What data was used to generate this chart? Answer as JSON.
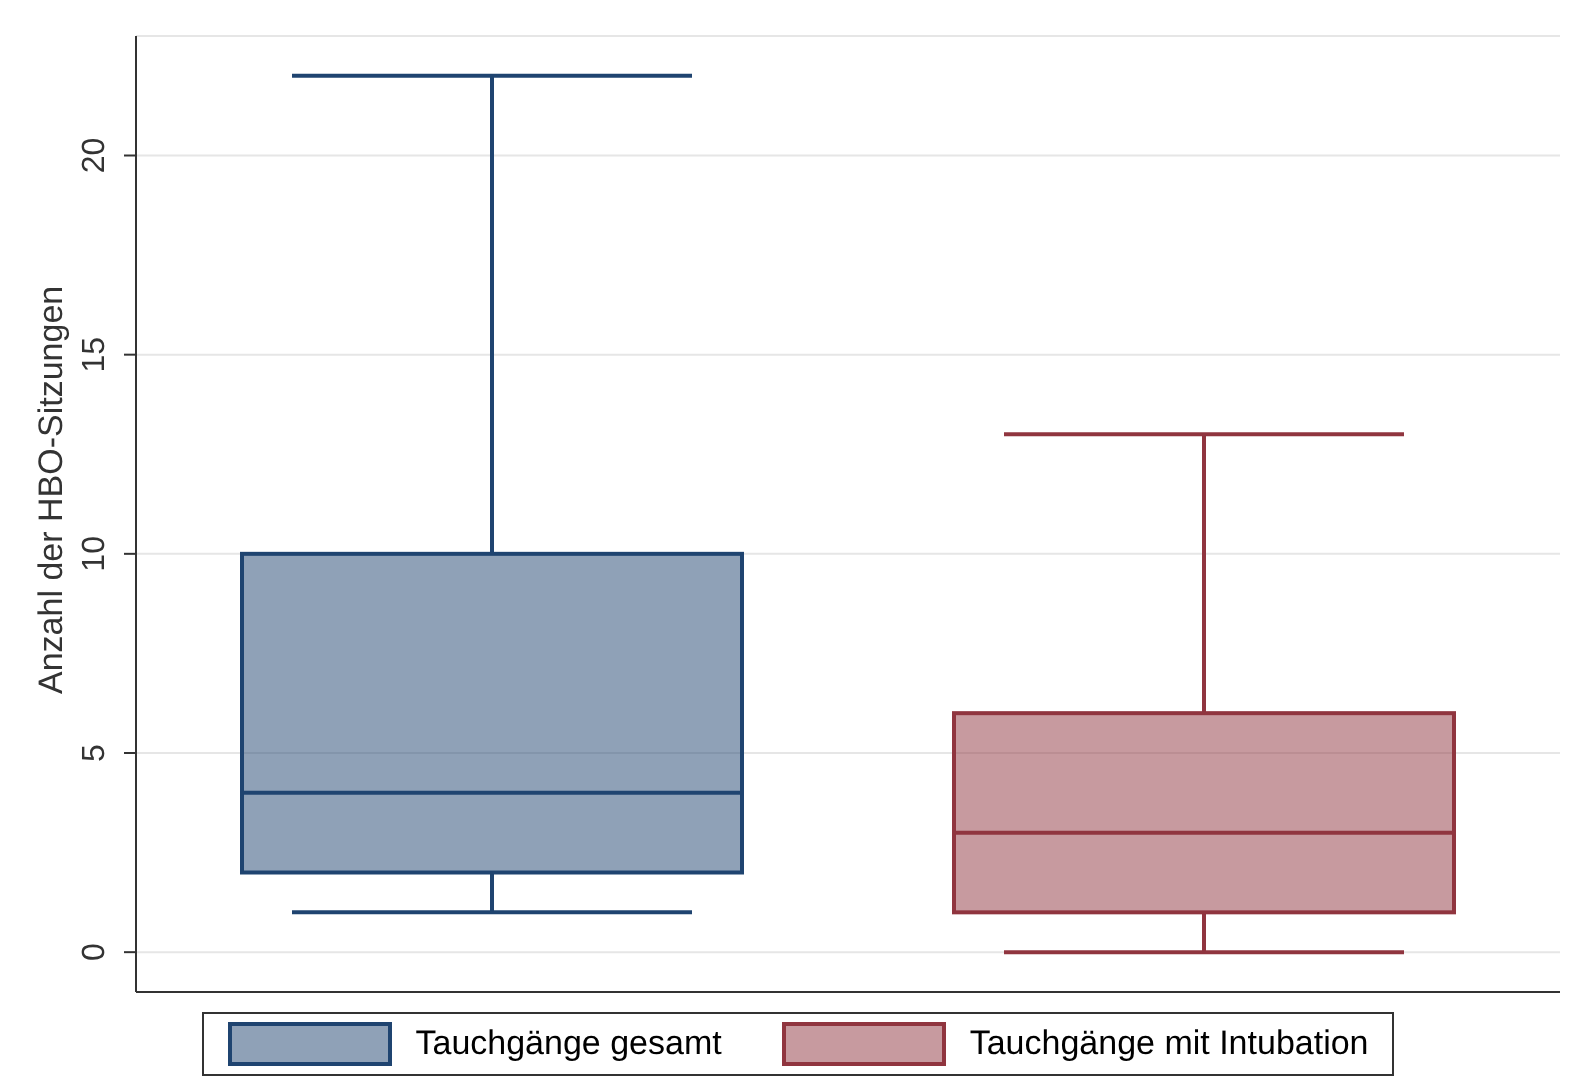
{
  "chart_data": {
    "type": "box",
    "ylabel": "Anzahl der HBO-Sitzungen",
    "categories": [
      null,
      null
    ],
    "ylim": [
      -1,
      23
    ],
    "yticks": [
      0,
      5,
      10,
      15,
      20
    ],
    "grid": "y",
    "legend": "bottom",
    "series": [
      {
        "name": "Tauchgänge gesamt",
        "color": "#1f4470",
        "boxes": [
          {
            "low": 1,
            "q1": 2,
            "median": 4,
            "q3": 10,
            "high": 22
          },
          null
        ]
      },
      {
        "name": "Tauchgänge mit Intubation",
        "color": "#90353f",
        "boxes": [
          null,
          {
            "low": 0,
            "q1": 1,
            "median": 3,
            "q3": 6,
            "high": 13
          }
        ]
      }
    ]
  }
}
